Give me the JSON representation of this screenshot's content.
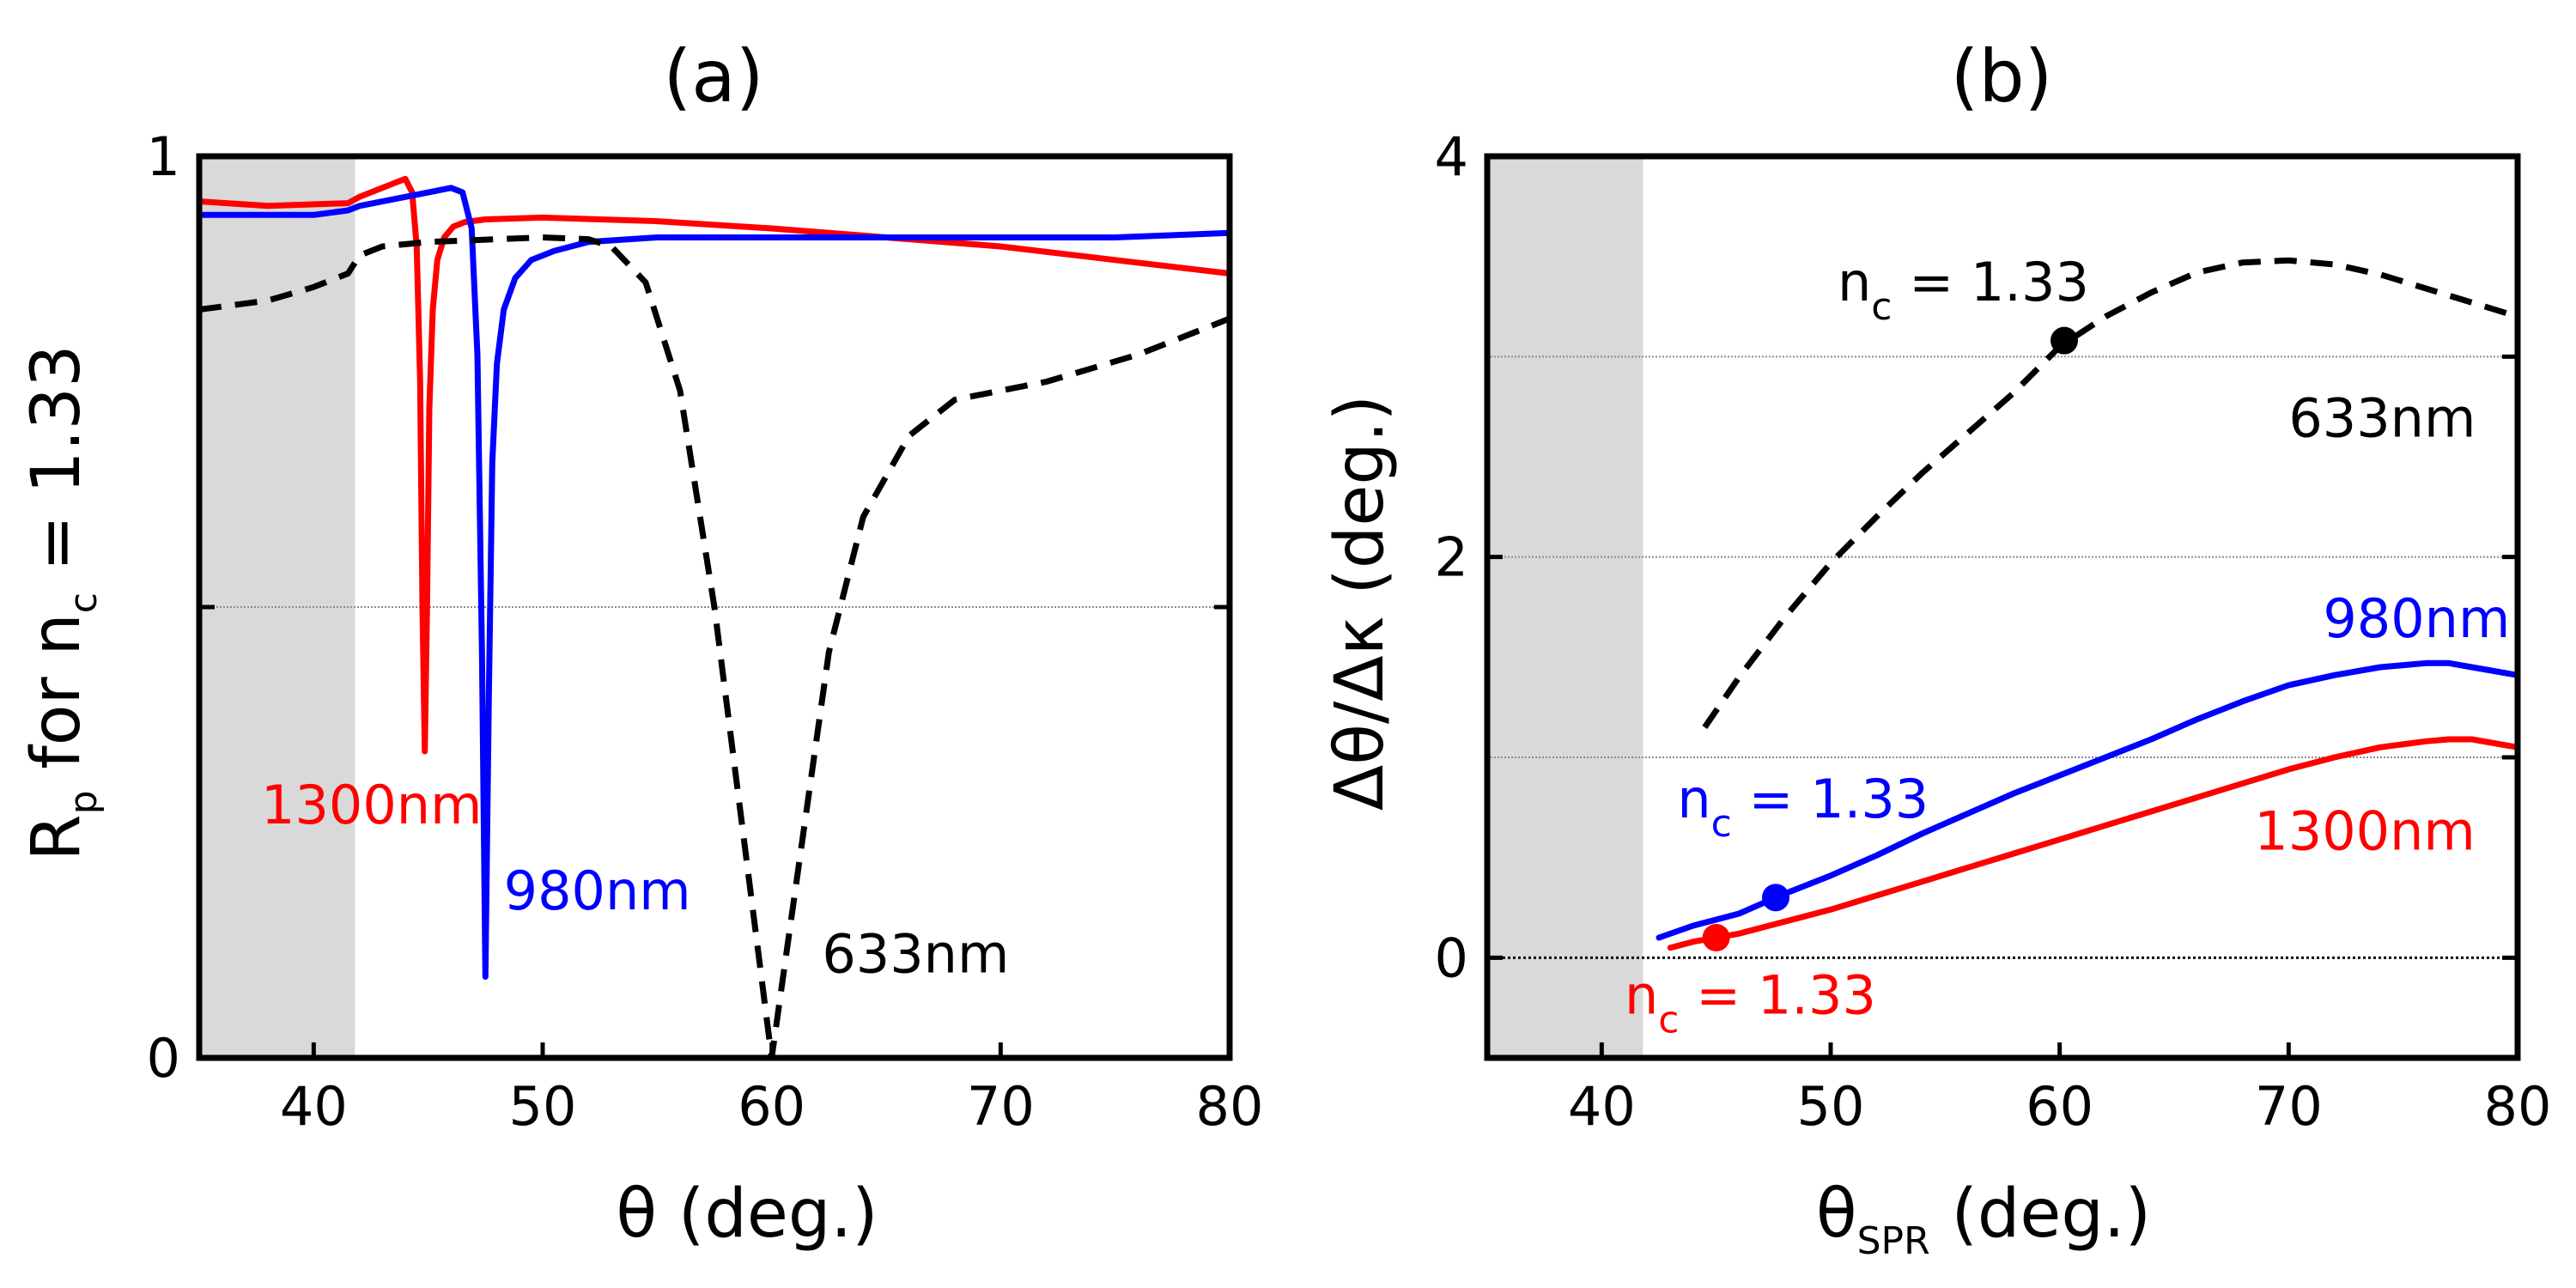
{
  "colors": {
    "red": "#ff0000",
    "blue": "#0000ff",
    "black": "#000000",
    "shade": "#d9d9d9",
    "grid": "#8c8c8c"
  },
  "chart_data": [
    {
      "type": "line",
      "panel": "(a)",
      "title": "(a)",
      "xlabel": "θ (deg.)",
      "ylabel": {
        "main": "R",
        "sub": "p",
        "mid": " for n",
        "sub2": "c",
        "tail": " = 1.33"
      },
      "xlim": [
        35,
        80
      ],
      "ylim": [
        0,
        1
      ],
      "xticks": [
        40,
        50,
        60,
        70,
        80
      ],
      "yticks": [
        0,
        1
      ],
      "grid_y": [
        0.5
      ],
      "shaded_region_x": [
        35,
        41.8
      ],
      "series": [
        {
          "name": "1300nm",
          "color": "#ff0000",
          "dash": "solid",
          "x": [
            35,
            38,
            41.5,
            42,
            43,
            44,
            44.3,
            44.5,
            44.65,
            44.75,
            44.85,
            44.95,
            45.05,
            45.2,
            45.4,
            45.7,
            46.1,
            46.6,
            47.5,
            50,
            55,
            60,
            65,
            70,
            75,
            80
          ],
          "y": [
            0.95,
            0.945,
            0.948,
            0.955,
            0.965,
            0.975,
            0.96,
            0.9,
            0.75,
            0.5,
            0.34,
            0.5,
            0.72,
            0.83,
            0.885,
            0.91,
            0.922,
            0.927,
            0.93,
            0.932,
            0.928,
            0.92,
            0.91,
            0.9,
            0.885,
            0.87
          ]
        },
        {
          "name": "980nm",
          "color": "#0000ff",
          "dash": "solid",
          "x": [
            35,
            40,
            41.5,
            42,
            44,
            46,
            46.5,
            46.9,
            47.15,
            47.35,
            47.5,
            47.65,
            47.8,
            48,
            48.3,
            48.8,
            49.5,
            50.5,
            52,
            55,
            60,
            65,
            70,
            75,
            80
          ],
          "y": [
            0.935,
            0.935,
            0.94,
            0.945,
            0.955,
            0.965,
            0.96,
            0.92,
            0.78,
            0.45,
            0.09,
            0.4,
            0.66,
            0.77,
            0.83,
            0.865,
            0.885,
            0.895,
            0.905,
            0.91,
            0.91,
            0.91,
            0.91,
            0.91,
            0.915
          ]
        },
        {
          "name": "633nm",
          "color": "#000000",
          "dash": "dashed",
          "x": [
            35,
            38,
            40,
            41.5,
            42,
            43,
            45,
            50,
            52,
            53,
            54.5,
            56,
            57.5,
            59,
            60,
            61,
            62.5,
            64,
            66,
            68,
            70,
            72,
            74,
            76,
            78,
            80
          ],
          "y": [
            0.83,
            0.84,
            0.855,
            0.87,
            0.89,
            0.9,
            0.905,
            0.91,
            0.908,
            0.9,
            0.86,
            0.74,
            0.5,
            0.2,
            0.0,
            0.18,
            0.45,
            0.6,
            0.69,
            0.73,
            0.74,
            0.75,
            0.765,
            0.78,
            0.8,
            0.82
          ]
        }
      ],
      "annotations": [
        {
          "text": "1300nm",
          "color": "#ff0000",
          "x": 37.7,
          "y": 0.26
        },
        {
          "text": "980nm",
          "color": "#0000ff",
          "x": 48.3,
          "y": 0.165
        },
        {
          "text": "633nm",
          "color": "#000000",
          "x": 62.2,
          "y": 0.095
        }
      ]
    },
    {
      "type": "line",
      "panel": "(b)",
      "title": "(b)",
      "xlabel": {
        "main": "θ",
        "sub": "SPR",
        "tail": " (deg.)"
      },
      "ylabel": "Δθ/Δκ (deg.)",
      "xlim": [
        35,
        80
      ],
      "ylim": [
        -0.5,
        4
      ],
      "xticks": [
        40,
        50,
        60,
        70,
        80
      ],
      "yticks": [
        0,
        2,
        4
      ],
      "grid_y": [
        0,
        1,
        2,
        3
      ],
      "shaded_region_x": [
        35,
        41.8
      ],
      "series": [
        {
          "name": "633nm",
          "color": "#000000",
          "dash": "dashed",
          "x": [
            44.5,
            46,
            48,
            50,
            52,
            54,
            56,
            58,
            60,
            62,
            64,
            66,
            68,
            70,
            72,
            74,
            76,
            78,
            80
          ],
          "y": [
            1.15,
            1.4,
            1.7,
            1.97,
            2.2,
            2.42,
            2.62,
            2.82,
            3.05,
            3.2,
            3.32,
            3.42,
            3.47,
            3.48,
            3.46,
            3.41,
            3.34,
            3.27,
            3.2
          ]
        },
        {
          "name": "980nm",
          "color": "#0000ff",
          "dash": "solid",
          "x": [
            42.5,
            44,
            46,
            48,
            50,
            52,
            54,
            56,
            58,
            60,
            62,
            64,
            66,
            68,
            70,
            72,
            74,
            76,
            77,
            78,
            80
          ],
          "y": [
            0.1,
            0.16,
            0.22,
            0.32,
            0.41,
            0.51,
            0.62,
            0.72,
            0.82,
            0.91,
            1.0,
            1.09,
            1.19,
            1.28,
            1.36,
            1.41,
            1.45,
            1.47,
            1.47,
            1.45,
            1.41
          ]
        },
        {
          "name": "1300nm",
          "color": "#ff0000",
          "dash": "solid",
          "x": [
            43,
            44,
            46,
            48,
            50,
            52,
            54,
            56,
            58,
            60,
            62,
            64,
            66,
            68,
            70,
            72,
            74,
            76,
            77,
            78,
            80
          ],
          "y": [
            0.05,
            0.08,
            0.12,
            0.18,
            0.24,
            0.31,
            0.38,
            0.45,
            0.52,
            0.59,
            0.66,
            0.73,
            0.8,
            0.87,
            0.94,
            1.0,
            1.05,
            1.08,
            1.09,
            1.09,
            1.05
          ]
        }
      ],
      "markers": [
        {
          "series": "633nm",
          "x": 60.2,
          "y": 3.08,
          "color": "#000000"
        },
        {
          "series": "980nm",
          "x": 47.6,
          "y": 0.3,
          "color": "#0000ff"
        },
        {
          "series": "1300nm",
          "x": 45,
          "y": 0.1,
          "color": "#ff0000"
        }
      ],
      "annotations": [
        {
          "kind": "nc",
          "main": "n",
          "sub": "c",
          "tail": " = 1.33",
          "color": "#000000",
          "x": 50.3,
          "y": 3.28
        },
        {
          "kind": "nc",
          "main": "n",
          "sub": "c",
          "tail": " = 1.33",
          "color": "#0000ff",
          "x": 43.3,
          "y": 0.7
        },
        {
          "kind": "nc",
          "main": "n",
          "sub": "c",
          "tail": " = 1.33",
          "color": "#ff0000",
          "x": 41,
          "y": -0.28
        },
        {
          "text": "633nm",
          "color": "#000000",
          "x": 70,
          "y": 2.6
        },
        {
          "text": "980nm",
          "color": "#0000ff",
          "x": 71.5,
          "y": 1.6
        },
        {
          "text": "1300nm",
          "color": "#ff0000",
          "x": 68.5,
          "y": 0.54
        }
      ]
    }
  ]
}
